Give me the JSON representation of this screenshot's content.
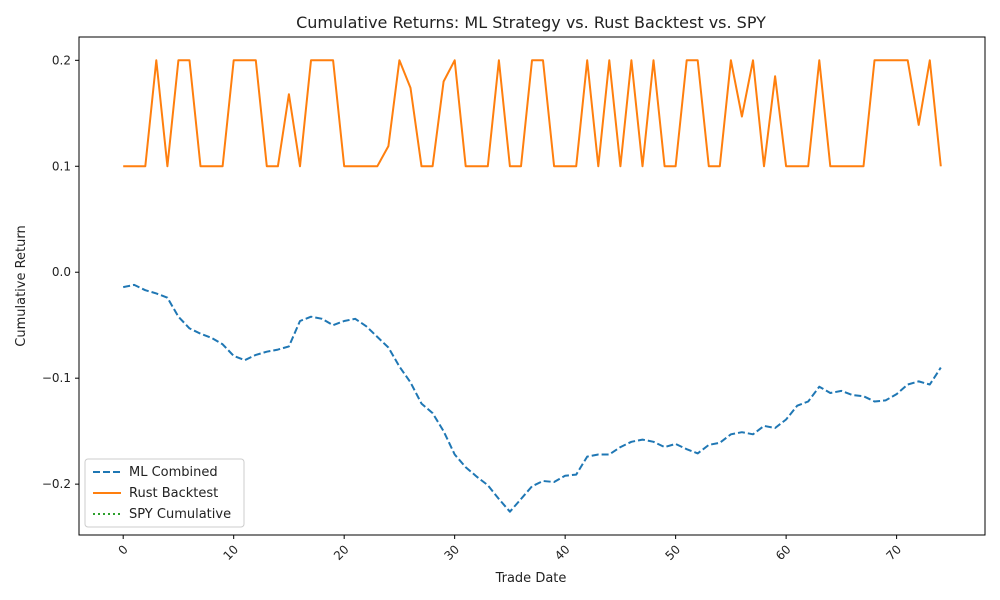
{
  "chart_data": {
    "type": "line",
    "title": "Cumulative Returns: ML Strategy vs. Rust Backtest vs. SPY",
    "xlabel": "Trade Date",
    "ylabel": "Cumulative Return",
    "xlim": [
      -4,
      78
    ],
    "ylim": [
      -0.248,
      0.222
    ],
    "xticks": [
      0,
      10,
      20,
      30,
      40,
      50,
      60,
      70
    ],
    "yticks": [
      -0.2,
      -0.1,
      0.0,
      0.1,
      0.2
    ],
    "ytick_labels": [
      "−0.2",
      "−0.1",
      "0.0",
      "0.1",
      "0.2"
    ],
    "xtick_rotation": -45,
    "grid": false,
    "legend_position": "bottom-left",
    "series": [
      {
        "name": "ML Combined",
        "color": "#1f77b4",
        "style": "dashed",
        "x": [
          0,
          1,
          2,
          3,
          4,
          5,
          6,
          7,
          8,
          9,
          10,
          11,
          12,
          13,
          14,
          15,
          16,
          17,
          18,
          19,
          20,
          21,
          22,
          23,
          24,
          25,
          26,
          27,
          28,
          29,
          30,
          31,
          32,
          33,
          34,
          35,
          36,
          37,
          38,
          39,
          40,
          41,
          42,
          43,
          44,
          45,
          46,
          47,
          48,
          49,
          50,
          51,
          52,
          53,
          54,
          55,
          56,
          57,
          58,
          59,
          60,
          61,
          62,
          63,
          64,
          65,
          66,
          67,
          68,
          69,
          70,
          71,
          72,
          73,
          74
        ],
        "values": [
          -0.014,
          -0.012,
          -0.017,
          -0.02,
          -0.024,
          -0.042,
          -0.053,
          -0.058,
          -0.062,
          -0.068,
          -0.079,
          -0.083,
          -0.078,
          -0.075,
          -0.073,
          -0.07,
          -0.046,
          -0.042,
          -0.044,
          -0.05,
          -0.046,
          -0.044,
          -0.051,
          -0.061,
          -0.071,
          -0.089,
          -0.104,
          -0.124,
          -0.133,
          -0.15,
          -0.172,
          -0.184,
          -0.193,
          -0.201,
          -0.214,
          -0.226,
          -0.214,
          -0.202,
          -0.197,
          -0.198,
          -0.192,
          -0.191,
          -0.174,
          -0.172,
          -0.172,
          -0.165,
          -0.16,
          -0.158,
          -0.16,
          -0.165,
          -0.162,
          -0.167,
          -0.171,
          -0.163,
          -0.161,
          -0.153,
          -0.151,
          -0.153,
          -0.145,
          -0.147,
          -0.139,
          -0.126,
          -0.122,
          -0.108,
          -0.114,
          -0.112,
          -0.116,
          -0.117,
          -0.122,
          -0.121,
          -0.115,
          -0.106,
          -0.103,
          -0.106,
          -0.09
        ]
      },
      {
        "name": "Rust Backtest",
        "color": "#ff7f0e",
        "style": "solid",
        "x": [
          0,
          1,
          2,
          3,
          4,
          5,
          6,
          7,
          8,
          9,
          10,
          11,
          12,
          13,
          14,
          15,
          16,
          17,
          18,
          19,
          20,
          21,
          22,
          23,
          24,
          25,
          26,
          27,
          28,
          29,
          30,
          31,
          32,
          33,
          34,
          35,
          36,
          37,
          38,
          39,
          40,
          41,
          42,
          43,
          44,
          45,
          46,
          47,
          48,
          49,
          50,
          51,
          52,
          53,
          54,
          55,
          56,
          57,
          58,
          59,
          60,
          61,
          62,
          63,
          64,
          65,
          66,
          67,
          68,
          69,
          70,
          71,
          72,
          73,
          74
        ],
        "values": [
          0.1,
          0.1,
          0.1,
          0.2,
          0.1,
          0.2,
          0.2,
          0.1,
          0.1,
          0.1,
          0.2,
          0.2,
          0.2,
          0.1,
          0.1,
          0.168,
          0.1,
          0.2,
          0.2,
          0.2,
          0.1,
          0.1,
          0.1,
          0.1,
          0.119,
          0.2,
          0.174,
          0.1,
          0.1,
          0.18,
          0.2,
          0.1,
          0.1,
          0.1,
          0.2,
          0.1,
          0.1,
          0.2,
          0.2,
          0.1,
          0.1,
          0.1,
          0.2,
          0.1,
          0.2,
          0.1,
          0.2,
          0.1,
          0.2,
          0.1,
          0.1,
          0.2,
          0.2,
          0.1,
          0.1,
          0.2,
          0.147,
          0.2,
          0.1,
          0.185,
          0.1,
          0.1,
          0.1,
          0.2,
          0.1,
          0.1,
          0.1,
          0.1,
          0.2,
          0.2,
          0.2,
          0.2,
          0.139,
          0.2,
          0.1
        ]
      },
      {
        "name": "SPY Cumulative",
        "color": "#2ca02c",
        "style": "dotted",
        "x": [],
        "values": []
      }
    ]
  }
}
